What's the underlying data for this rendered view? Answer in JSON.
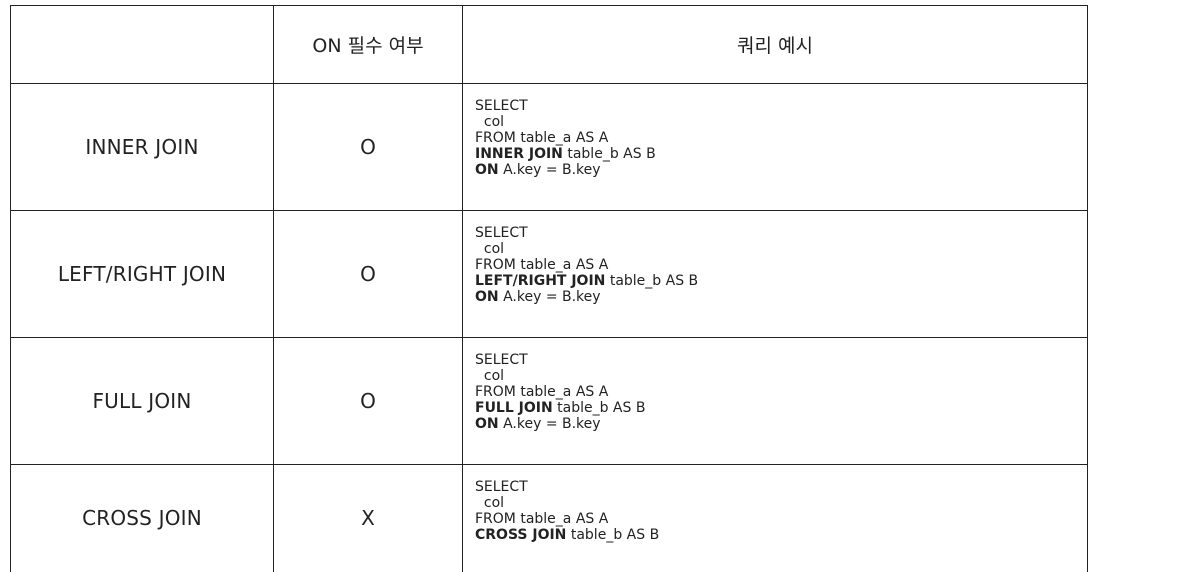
{
  "table": {
    "headers": [
      "",
      "ON 필수 여부",
      "쿼리 예시"
    ],
    "rows": [
      {
        "join": "INNER JOIN",
        "on_required": "O",
        "query": {
          "line1": "SELECT",
          "line2": "  col",
          "line3": "FROM table_a AS A",
          "line4_kw": "INNER JOIN",
          "line4_rest": " table_b AS B",
          "line5_kw": "ON",
          "line5_rest": " A.key = B.key"
        }
      },
      {
        "join": "LEFT/RIGHT JOIN",
        "on_required": "O",
        "query": {
          "line1": "SELECT",
          "line2": "  col",
          "line3": "FROM table_a AS A",
          "line4_kw": "LEFT/RIGHT JOIN",
          "line4_rest": " table_b AS B",
          "line5_kw": "ON",
          "line5_rest": " A.key = B.key"
        }
      },
      {
        "join": "FULL JOIN",
        "on_required": "O",
        "query": {
          "line1": "SELECT",
          "line2": "  col",
          "line3": "FROM table_a AS A",
          "line4_kw": "FULL JOIN",
          "line4_rest": " table_b AS B",
          "line5_kw": "ON",
          "line5_rest": " A.key = B.key"
        }
      },
      {
        "join": "CROSS JOIN",
        "on_required": "X",
        "query": {
          "line1": "SELECT",
          "line2": "  col",
          "line3": "FROM table_a AS A",
          "line4_kw": "CROSS JOIN",
          "line4_rest": " table_b AS B"
        }
      }
    ]
  }
}
